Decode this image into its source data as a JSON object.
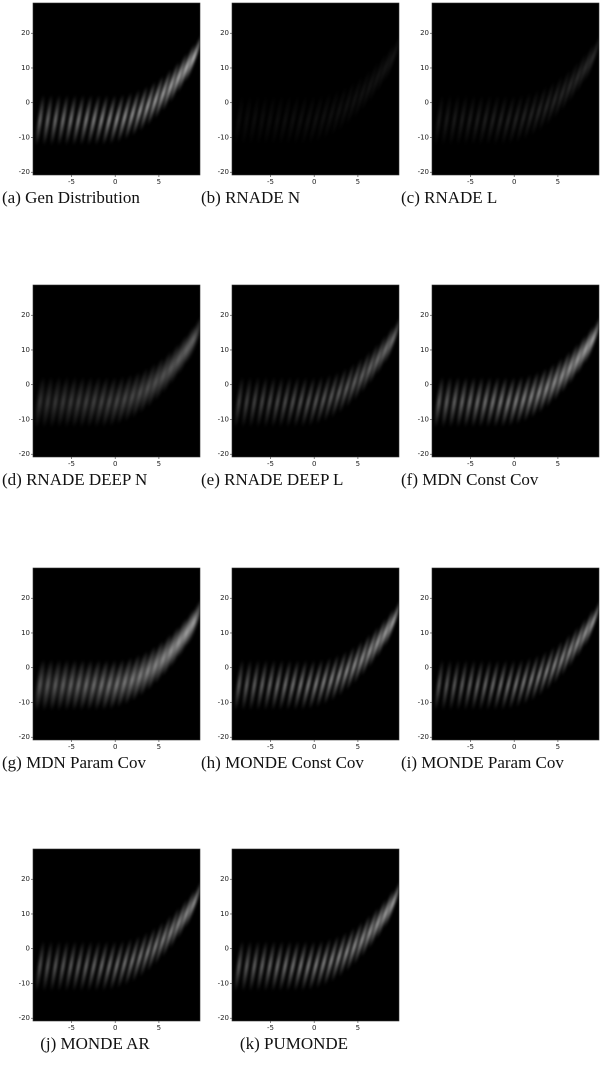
{
  "panels": [
    {
      "caption": "(a) Gen Distribution"
    },
    {
      "caption": "(b) RNADE N"
    },
    {
      "caption": "(c) RNADE L"
    },
    {
      "caption": "(d) RNADE DEEP N"
    },
    {
      "caption": "(e) RNADE DEEP L"
    },
    {
      "caption": "(f) MDN Const Cov"
    },
    {
      "caption": "(g) MDN Param Cov"
    },
    {
      "caption": "(h) MONDE Const Cov"
    },
    {
      "caption": "(i) MONDE Param Cov"
    },
    {
      "caption": "(j) MONDE AR"
    },
    {
      "caption": "(k) PUMONDE"
    }
  ],
  "xlim": [
    -9.4,
    9.7
  ],
  "ylim": [
    -20.8,
    28.7
  ],
  "xticks": [
    -5,
    0,
    5
  ],
  "yticks": [
    -20,
    -10,
    0,
    10,
    20
  ]
}
